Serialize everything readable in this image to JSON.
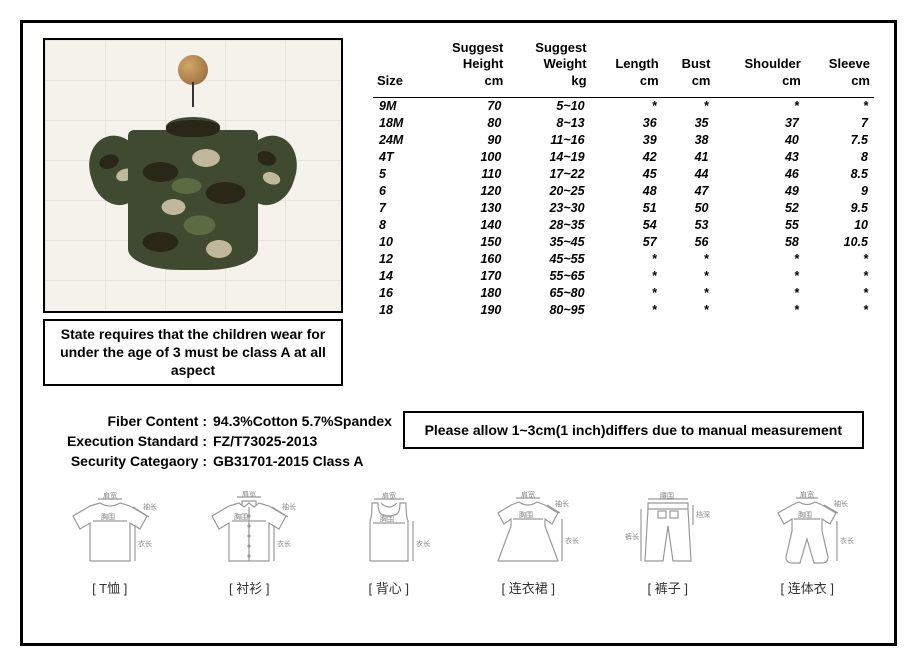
{
  "notice": "State requires that the children wear for under the age of 3 must be class A at all aspect",
  "tolerance": "Please allow 1~3cm(1 inch)differs due to manual measurement",
  "specs": {
    "fiber_label": "Fiber Content :",
    "fiber_value": "94.3%Cotton 5.7%Spandex",
    "exec_label": "Execution Standard :",
    "exec_value": "FZ/T73025-2013",
    "sec_label": "Security Categaory :",
    "sec_value": "GB31701-2015  Class A"
  },
  "table": {
    "columns": [
      "Size",
      "Suggest\nHeight\ncm",
      "Suggest\nWeight\nkg",
      "Length\ncm",
      "Bust\ncm",
      "Shoulder\ncm",
      "Sleeve\ncm"
    ],
    "rows": [
      [
        "9M",
        "70",
        "5~10",
        "*",
        "*",
        "*",
        "*"
      ],
      [
        "18M",
        "80",
        "8~13",
        "36",
        "35",
        "37",
        "7"
      ],
      [
        "24M",
        "90",
        "11~16",
        "39",
        "38",
        "40",
        "7.5"
      ],
      [
        "4T",
        "100",
        "14~19",
        "42",
        "41",
        "43",
        "8"
      ],
      [
        "5",
        "110",
        "17~22",
        "45",
        "44",
        "46",
        "8.5"
      ],
      [
        "6",
        "120",
        "20~25",
        "48",
        "47",
        "49",
        "9"
      ],
      [
        "7",
        "130",
        "23~30",
        "51",
        "50",
        "52",
        "9.5"
      ],
      [
        "8",
        "140",
        "28~35",
        "54",
        "53",
        "55",
        "10"
      ],
      [
        "10",
        "150",
        "35~45",
        "57",
        "56",
        "58",
        "10.5"
      ],
      [
        "12",
        "160",
        "45~55",
        "*",
        "*",
        "*",
        "*"
      ],
      [
        "14",
        "170",
        "55~65",
        "*",
        "*",
        "*",
        "*"
      ],
      [
        "16",
        "180",
        "65~80",
        "*",
        "*",
        "*",
        "*"
      ],
      [
        "18",
        "190",
        "80~95",
        "*",
        "*",
        "*",
        "*"
      ]
    ]
  },
  "diagrams": {
    "labels": [
      "肩宽",
      "袖长",
      "胸围",
      "衣长",
      "腰围",
      "裤长",
      "档深"
    ],
    "items": [
      {
        "label": "[ T恤 ]"
      },
      {
        "label": "[ 衬衫 ]"
      },
      {
        "label": "[ 背心 ]"
      },
      {
        "label": "[ 连衣裙 ]"
      },
      {
        "label": "[ 裤子 ]"
      },
      {
        "label": "[ 连体衣 ]"
      }
    ]
  }
}
